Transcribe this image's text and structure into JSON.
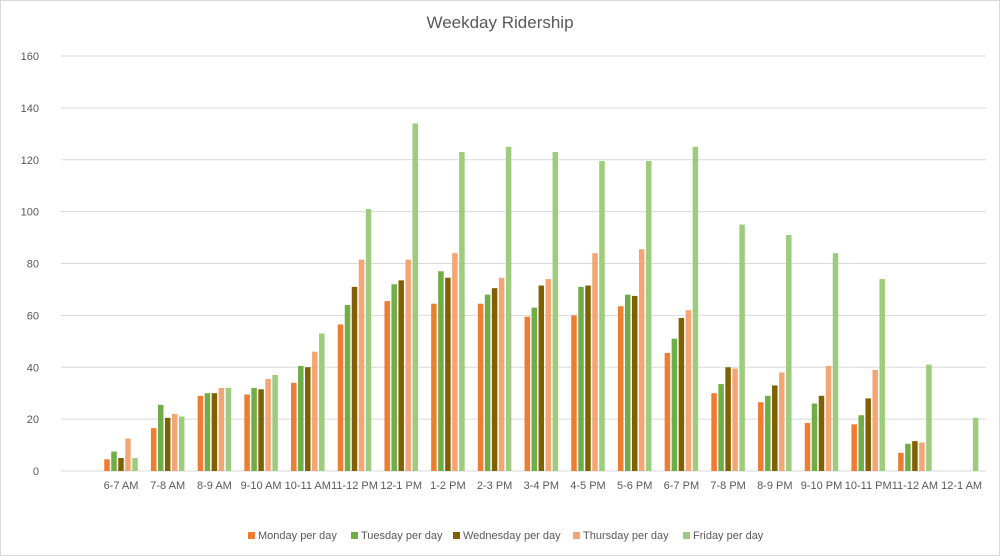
{
  "chart_data": {
    "type": "bar",
    "title": "Weekday Ridership",
    "xlabel": "",
    "ylabel": "",
    "ylim": [
      0,
      160
    ],
    "yticks": [
      0,
      20,
      40,
      60,
      80,
      100,
      120,
      140,
      160
    ],
    "grid": true,
    "legend_position": "bottom",
    "categories": [
      "6-7 AM",
      "7-8 AM",
      "8-9 AM",
      "9-10 AM",
      "10-11 AM",
      "11-12 PM",
      "12-1 PM",
      "1-2 PM",
      "2-3 PM",
      "3-4 PM",
      "4-5 PM",
      "5-6 PM",
      "6-7 PM",
      "7-8 PM",
      "8-9 PM",
      "9-10 PM",
      "10-11 PM",
      "11-12 AM",
      "12-1 AM"
    ],
    "series": [
      {
        "name": "Monday per day",
        "color": "#ed7d31",
        "values": [
          4.5,
          16.5,
          29,
          29.5,
          34,
          56.5,
          65.5,
          64.5,
          64.5,
          59.5,
          60,
          63.5,
          45.5,
          30,
          26.5,
          18.5,
          18,
          7,
          null
        ]
      },
      {
        "name": "Tuesday per day",
        "color": "#70ad47",
        "values": [
          7.5,
          25.5,
          30,
          32,
          40.5,
          64,
          72,
          77,
          68,
          63,
          71,
          68,
          51,
          33.5,
          29,
          26,
          21.5,
          10.5,
          null
        ]
      },
      {
        "name": "Wednesday per day",
        "color": "#806000",
        "values": [
          5,
          20.5,
          30,
          31.5,
          40,
          71,
          73.5,
          74.5,
          70.5,
          71.5,
          71.5,
          67.5,
          59,
          40,
          33,
          29,
          28,
          11.5,
          null
        ]
      },
      {
        "name": "Thursday per day",
        "color": "#f4a573",
        "values": [
          12.5,
          22,
          32,
          35.5,
          46,
          81.5,
          81.5,
          84,
          74.5,
          74,
          84,
          85.5,
          62,
          39.5,
          38,
          40.5,
          39,
          11,
          null
        ]
      },
      {
        "name": "Friday per day",
        "color": "#9ccc7c",
        "values": [
          5,
          21,
          32,
          37,
          53,
          101,
          134,
          123,
          125,
          123,
          119.5,
          119.5,
          125,
          95,
          91,
          84,
          74,
          41,
          20.5
        ]
      }
    ]
  }
}
